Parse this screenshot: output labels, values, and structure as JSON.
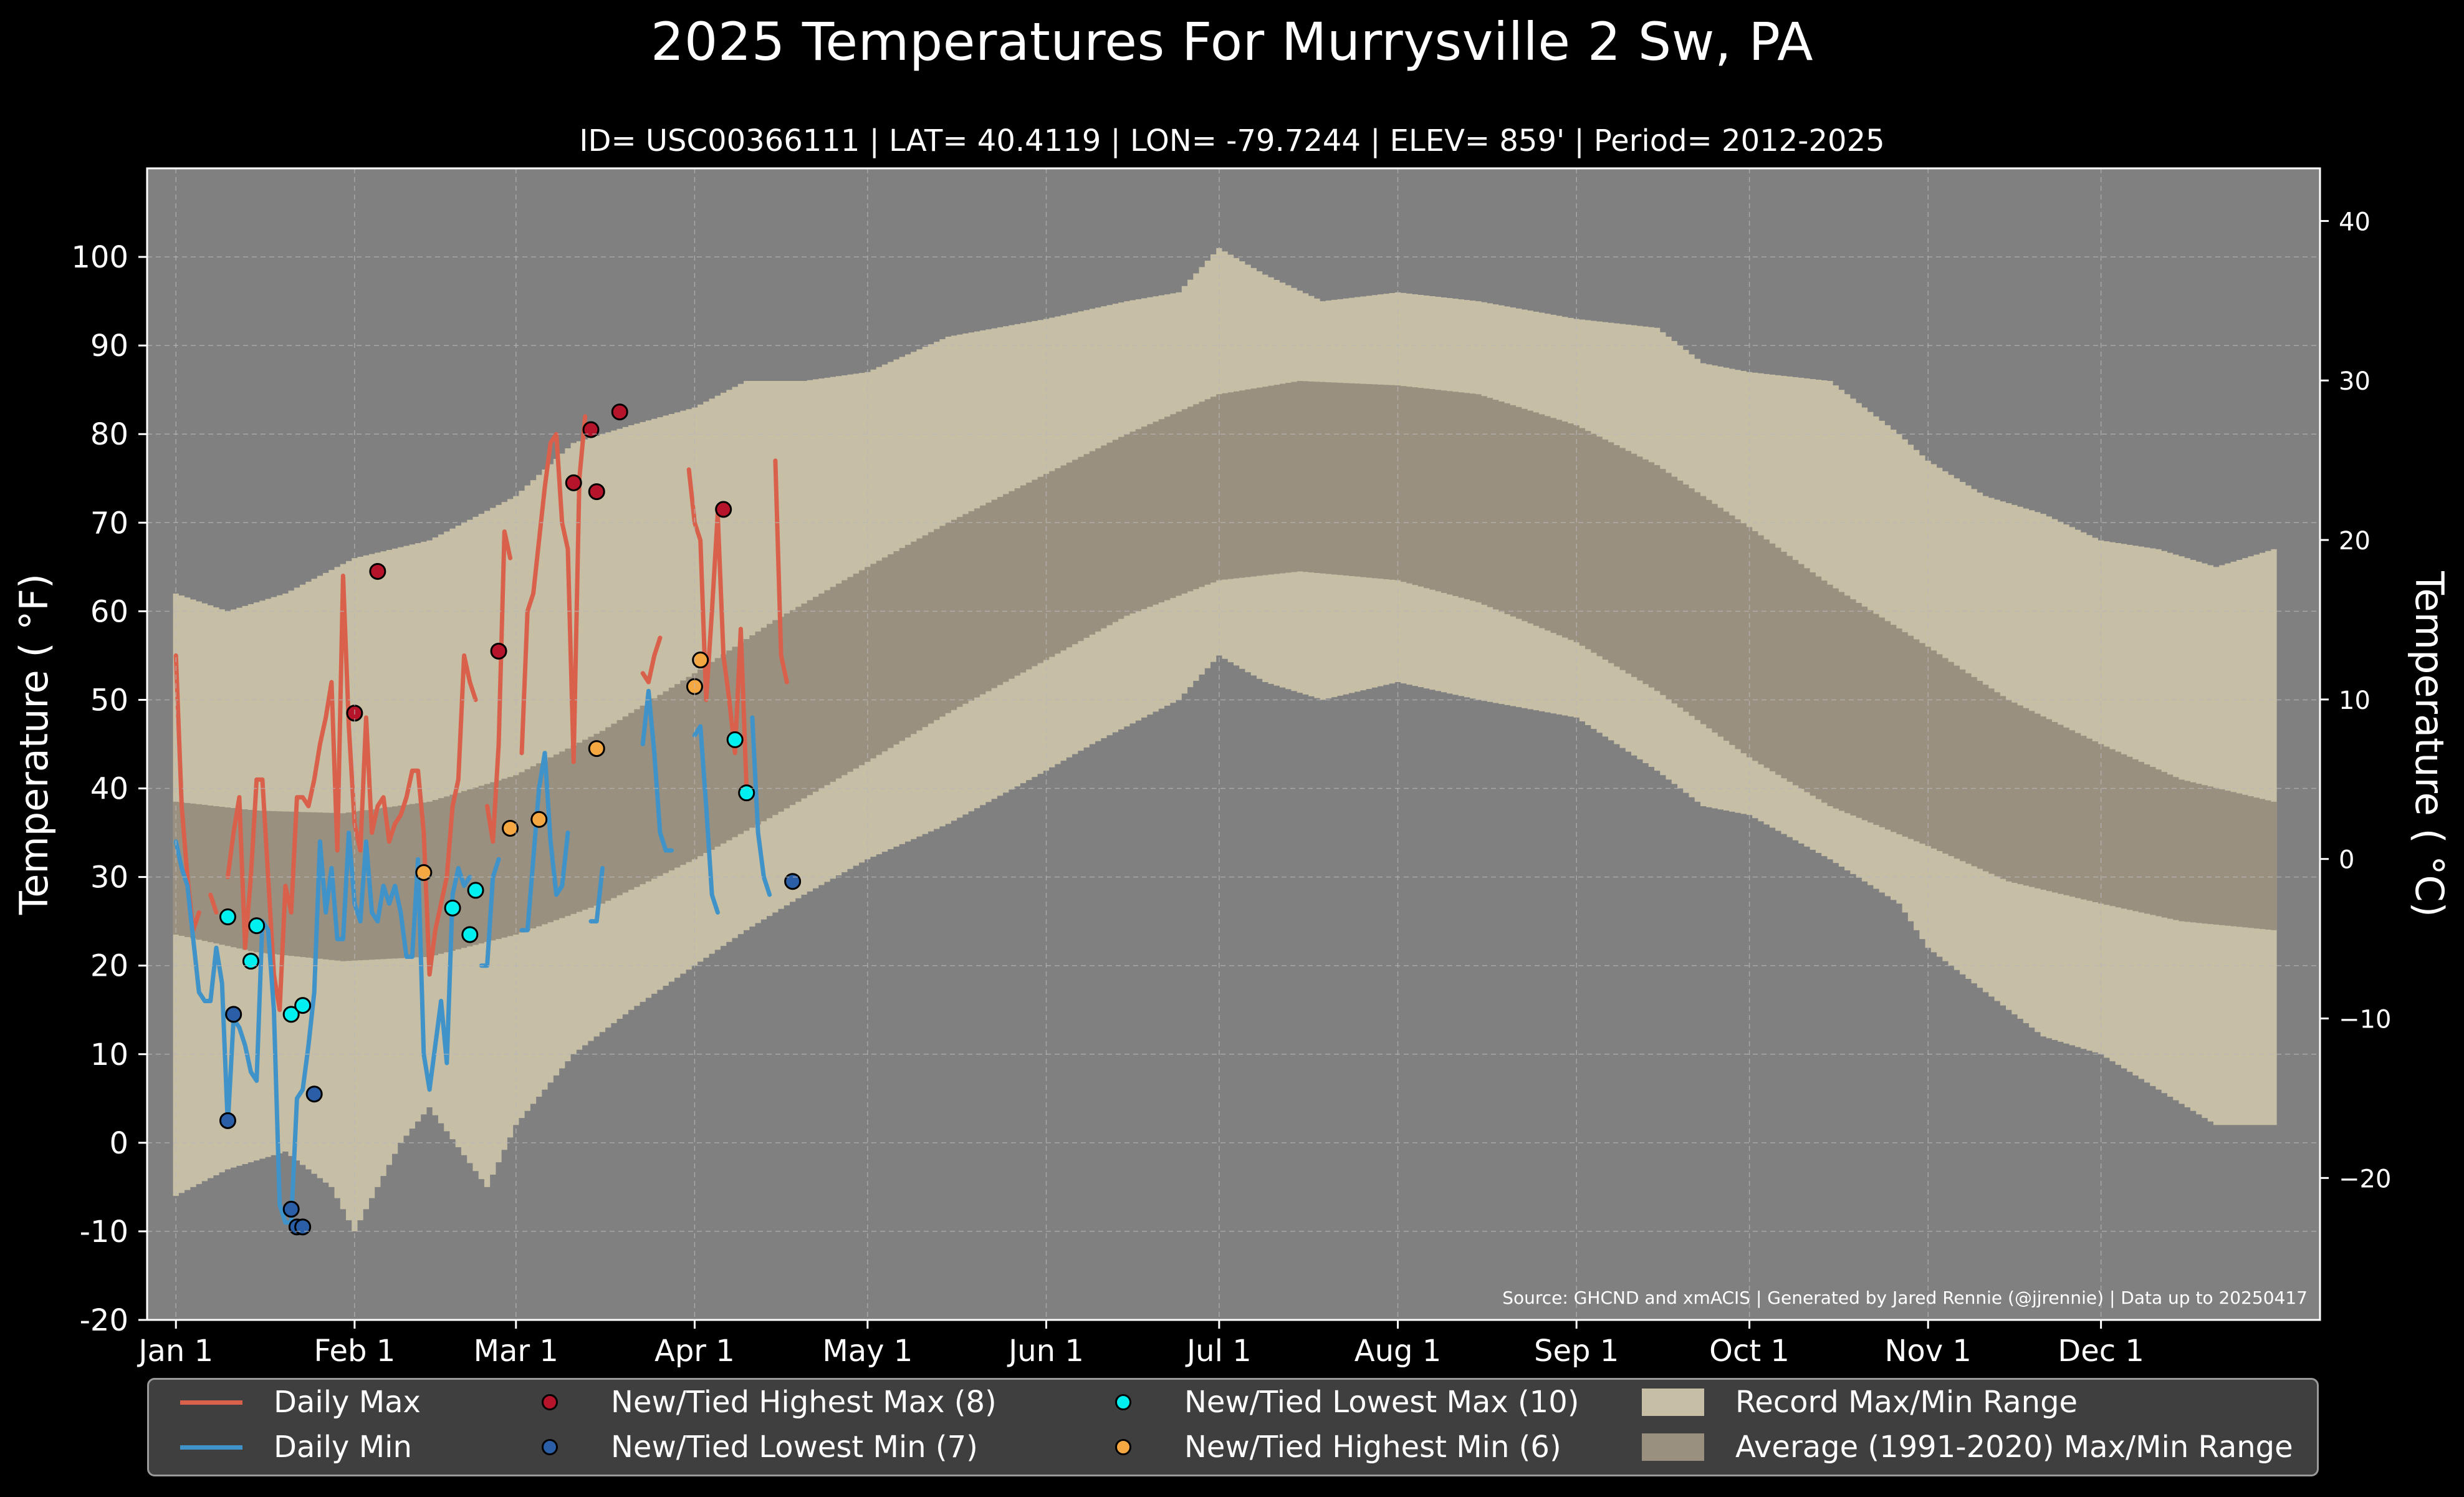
{
  "title": "2025 Temperatures For Murrysville 2 Sw, PA",
  "subtitle": "ID= USC00366111 | LAT= 40.4119 | LON= -79.7244 | ELEV= 859' | Period= 2012-2025",
  "source": "Source: GHCND and xmACIS | Generated by Jared Rennie (@jjrennie) | Data up to 20250417",
  "colors": {
    "plot_bg": "#808080",
    "record_range": "#c6bea5",
    "normal_range": "#9a9080",
    "daily_max": "#d9614c",
    "daily_min": "#3f93c9",
    "new_high_max": "#b5142a",
    "new_low_min": "#2a5fa8",
    "new_low_max": "#00f0f0",
    "new_high_min": "#f5a742"
  },
  "chart_data": {
    "type": "line",
    "title": "2025 Temperatures For Murrysville 2 Sw, PA",
    "ylabel": "Temperature ( °F)",
    "ylabel_right": "Temperature ( °C)",
    "ylim": [
      -20,
      110
    ],
    "yticks": [
      -20,
      -10,
      0,
      10,
      20,
      30,
      40,
      50,
      60,
      70,
      80,
      90,
      100
    ],
    "ylim_right": [
      -28.9,
      43.3
    ],
    "yticks_right": [
      -20,
      -10,
      0,
      10,
      20,
      30,
      40
    ],
    "xlim": [
      -4,
      373
    ],
    "xtick_labels": [
      "Jan 1",
      "Feb 1",
      "Mar 1",
      "Apr 1",
      "May 1",
      "Jun 1",
      "Jul 1",
      "Aug 1",
      "Sep 1",
      "Oct 1",
      "Nov 1",
      "Dec 1"
    ],
    "xticks": [
      1,
      32,
      60,
      91,
      121,
      152,
      182,
      213,
      244,
      274,
      305,
      335
    ],
    "grid": true,
    "legend_position": "bottom",
    "legend": [
      "Daily Max",
      "Daily Min",
      "New/Tied Highest Max (8)",
      "New/Tied Lowest Min (7)",
      "New/Tied Lowest Max (10)",
      "New/Tied Highest Min (6)",
      "Record Max/Min Range",
      "Average (1991-2020) Max/Min Range"
    ],
    "normal_max": {
      "x": [
        1,
        15,
        30,
        45,
        60,
        75,
        91,
        105,
        121,
        135,
        152,
        166,
        182,
        196,
        213,
        227,
        244,
        258,
        274,
        288,
        305,
        319,
        335,
        349,
        365
      ],
      "y": [
        38.5,
        37.5,
        37.2,
        38.5,
        41.5,
        46.5,
        53,
        59,
        65,
        70,
        75.5,
        80,
        84.5,
        86,
        85.5,
        84.5,
        81,
        76.5,
        69.5,
        63,
        56,
        50,
        45,
        41,
        38.5
      ]
    },
    "normal_min": {
      "x": [
        1,
        15,
        30,
        45,
        60,
        75,
        91,
        105,
        121,
        135,
        152,
        166,
        182,
        196,
        213,
        227,
        244,
        258,
        274,
        288,
        305,
        319,
        335,
        349,
        365
      ],
      "y": [
        23.5,
        21.5,
        20.5,
        21,
        23.5,
        27,
        32,
        37,
        43,
        48.5,
        54.5,
        59.5,
        63.5,
        64.5,
        63.5,
        61,
        56.5,
        51,
        43.5,
        38,
        33.5,
        29.5,
        27,
        25,
        24
      ]
    },
    "record_max": {
      "x": [
        1,
        10,
        20,
        32,
        45,
        60,
        70,
        80,
        91,
        100,
        110,
        121,
        135,
        152,
        166,
        175,
        182,
        190,
        200,
        213,
        227,
        244,
        258,
        266,
        274,
        288,
        300,
        305,
        315,
        325,
        335,
        345,
        355,
        365
      ],
      "y": [
        62,
        60,
        62,
        66,
        68,
        73,
        79,
        81,
        83,
        86,
        86,
        87,
        91,
        93,
        95,
        96,
        101,
        98,
        95,
        96,
        95,
        93,
        92,
        88,
        87,
        86,
        80,
        77,
        73,
        71,
        68,
        67,
        65,
        67
      ]
    },
    "record_min": {
      "x": [
        1,
        10,
        20,
        28,
        32,
        40,
        45,
        55,
        60,
        70,
        80,
        91,
        100,
        110,
        121,
        135,
        152,
        160,
        175,
        182,
        190,
        200,
        213,
        227,
        244,
        258,
        266,
        274,
        288,
        300,
        305,
        315,
        325,
        335,
        345,
        355,
        365
      ],
      "y": [
        -6,
        -3,
        -1,
        -5,
        -10,
        0,
        4,
        -5,
        2,
        10,
        15,
        20,
        24,
        28,
        32,
        36,
        42,
        45,
        50,
        55,
        52,
        50,
        52,
        50,
        48,
        42,
        38,
        37,
        32,
        27,
        22,
        17,
        12,
        10,
        6,
        2,
        2
      ]
    },
    "series": [
      {
        "name": "Daily Max",
        "x": [
          1,
          2,
          3,
          4,
          5,
          6,
          7,
          8,
          9,
          10,
          11,
          12,
          13,
          14,
          15,
          16,
          17,
          18,
          19,
          20,
          21,
          22,
          23,
          24,
          25,
          26,
          27,
          28,
          29,
          30,
          31,
          32,
          33,
          34,
          35,
          36,
          37,
          38,
          39,
          40,
          41,
          42,
          43,
          44,
          45,
          46,
          47,
          48,
          49,
          50,
          51,
          52,
          53,
          54,
          55,
          56,
          57,
          58,
          59,
          60,
          61,
          62,
          63,
          64,
          65,
          66,
          67,
          68,
          69,
          70,
          71,
          72,
          73,
          74,
          75,
          76,
          77,
          78,
          79,
          80,
          81,
          82,
          83,
          84,
          85,
          86,
          87,
          88,
          89,
          90,
          91,
          92,
          93,
          94,
          95,
          96,
          97,
          98,
          99,
          100,
          101,
          102,
          103,
          104,
          105,
          106,
          107
        ],
        "y": [
          55,
          38,
          30,
          24,
          26,
          null,
          28,
          26,
          null,
          30,
          35,
          39,
          22,
          30,
          41,
          41,
          30,
          19,
          15,
          29,
          26,
          39,
          39,
          38,
          41,
          45,
          48,
          52,
          33,
          64,
          47,
          36,
          33,
          48,
          35,
          38,
          39,
          34,
          36,
          37,
          39,
          42,
          42,
          35,
          19,
          24,
          27,
          30,
          38,
          41,
          55,
          52,
          50,
          null,
          38,
          34,
          45,
          69,
          66,
          null,
          44,
          60,
          62,
          68,
          74,
          79,
          80,
          70,
          67,
          43,
          75,
          82,
          null,
          null,
          null,
          null,
          null,
          null,
          null,
          null,
          null,
          53,
          52,
          55,
          57,
          null,
          null,
          null,
          null,
          76,
          70,
          68,
          50,
          60,
          71,
          55,
          50,
          44,
          58,
          40,
          null,
          null,
          null,
          null,
          77,
          55,
          52
        ]
      },
      {
        "name": "Daily Min",
        "x": [
          1,
          2,
          3,
          4,
          5,
          6,
          7,
          8,
          9,
          10,
          11,
          12,
          13,
          14,
          15,
          16,
          17,
          18,
          19,
          20,
          21,
          22,
          23,
          24,
          25,
          26,
          27,
          28,
          29,
          30,
          31,
          32,
          33,
          34,
          35,
          36,
          37,
          38,
          39,
          40,
          41,
          42,
          43,
          44,
          45,
          46,
          47,
          48,
          49,
          50,
          51,
          52,
          53,
          54,
          55,
          56,
          57,
          58,
          59,
          60,
          61,
          62,
          63,
          64,
          65,
          66,
          67,
          68,
          69,
          70,
          71,
          72,
          73,
          74,
          75,
          76,
          77,
          78,
          79,
          80,
          81,
          82,
          83,
          84,
          85,
          86,
          87,
          88,
          89,
          90,
          91,
          92,
          93,
          94,
          95,
          96,
          97,
          98,
          99,
          100,
          101,
          102,
          103,
          104,
          105,
          106,
          107
        ],
        "y": [
          34,
          31,
          29,
          23,
          17,
          16,
          16,
          22,
          18,
          2,
          14,
          13,
          11,
          8,
          7,
          25,
          24,
          15,
          -7,
          -9,
          -9,
          5,
          6,
          11,
          17,
          34,
          26,
          31,
          23,
          23,
          35,
          27,
          25,
          34,
          26,
          25,
          29,
          27,
          29,
          26,
          21,
          21,
          32,
          10,
          6,
          11,
          16,
          9,
          28,
          31,
          29,
          30,
          null,
          20,
          20,
          30,
          32,
          null,
          null,
          null,
          24,
          24,
          32,
          40,
          44,
          34,
          28,
          29,
          35,
          null,
          null,
          null,
          25,
          25,
          31,
          null,
          null,
          null,
          null,
          null,
          null,
          45,
          51,
          44,
          35,
          33,
          33,
          null,
          null,
          null,
          46,
          47,
          38,
          28,
          26,
          null,
          null,
          null,
          null,
          null,
          48,
          35,
          30,
          28,
          null,
          null,
          null
        ]
      },
      {
        "name": "New/Tied Highest Max (8)",
        "type": "scatter",
        "x": [
          32,
          36,
          57,
          70,
          73,
          74,
          78,
          96
        ],
        "y": [
          48.5,
          64.5,
          55.5,
          74.5,
          80.5,
          73.5,
          82.5,
          71.5
        ]
      },
      {
        "name": "New/Tied Lowest Min (7)",
        "type": "scatter",
        "x": [
          10,
          11,
          21,
          22,
          23,
          25,
          108
        ],
        "y": [
          2.5,
          14.5,
          -7.5,
          -9.5,
          -9.5,
          5.5,
          29.5
        ]
      },
      {
        "name": "New/Tied Lowest Max (10)",
        "type": "scatter",
        "x": [
          10,
          14,
          15,
          21,
          23,
          49,
          52,
          53,
          98,
          100
        ],
        "y": [
          25.5,
          20.5,
          24.5,
          14.5,
          15.5,
          26.5,
          23.5,
          28.5,
          45.5,
          39.5
        ]
      },
      {
        "name": "New/Tied Highest Min (6)",
        "type": "scatter",
        "x": [
          44,
          59,
          64,
          74,
          91,
          92
        ],
        "y": [
          30.5,
          35.5,
          36.5,
          44.5,
          51.5,
          54.5
        ]
      }
    ]
  }
}
